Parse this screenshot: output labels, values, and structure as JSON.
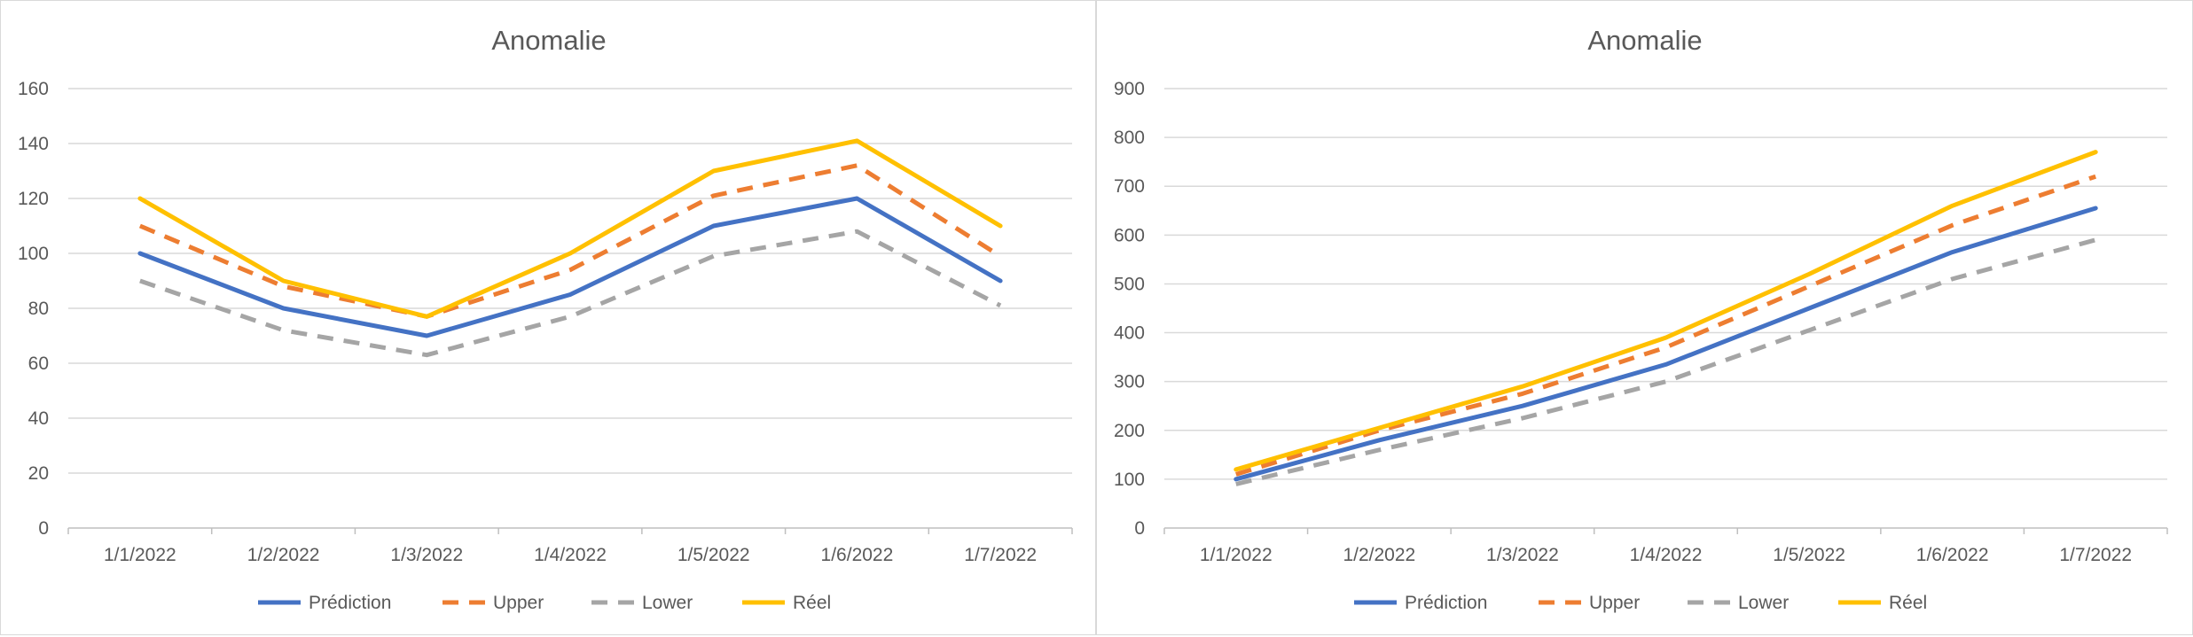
{
  "chart_data": [
    {
      "type": "line",
      "title": "Anomalie",
      "categories": [
        "1/1/2022",
        "1/2/2022",
        "1/3/2022",
        "1/4/2022",
        "1/5/2022",
        "1/6/2022",
        "1/7/2022"
      ],
      "ylim": [
        0,
        160
      ],
      "yticks": [
        0,
        20,
        40,
        60,
        80,
        100,
        120,
        140,
        160
      ],
      "grid": true,
      "legend": "bottom",
      "series": [
        {
          "name": "Prédiction",
          "color": "#4472C4",
          "dash": false,
          "values": [
            100,
            80,
            70,
            85,
            110,
            120,
            90
          ]
        },
        {
          "name": "Upper",
          "color": "#ED7D31",
          "dash": true,
          "values": [
            110,
            88,
            77,
            94,
            121,
            132,
            99
          ]
        },
        {
          "name": "Lower",
          "color": "#A5A5A5",
          "dash": true,
          "values": [
            90,
            72,
            63,
            77,
            99,
            108,
            81
          ]
        },
        {
          "name": "Réel",
          "color": "#FFC000",
          "dash": false,
          "values": [
            120,
            90,
            77,
            100,
            130,
            141,
            110
          ]
        }
      ]
    },
    {
      "type": "line",
      "title": "Anomalie",
      "categories": [
        "1/1/2022",
        "1/2/2022",
        "1/3/2022",
        "1/4/2022",
        "1/5/2022",
        "1/6/2022",
        "1/7/2022"
      ],
      "ylim": [
        0,
        900
      ],
      "yticks": [
        0,
        100,
        200,
        300,
        400,
        500,
        600,
        700,
        800,
        900
      ],
      "grid": true,
      "legend": "bottom",
      "series": [
        {
          "name": "Prédiction",
          "color": "#4472C4",
          "dash": false,
          "values": [
            100,
            180,
            250,
            335,
            450,
            565,
            655
          ]
        },
        {
          "name": "Upper",
          "color": "#ED7D31",
          "dash": true,
          "values": [
            110,
            200,
            275,
            370,
            495,
            620,
            720
          ]
        },
        {
          "name": "Lower",
          "color": "#A5A5A5",
          "dash": true,
          "values": [
            90,
            160,
            225,
            300,
            405,
            510,
            590
          ]
        },
        {
          "name": "Réel",
          "color": "#FFC000",
          "dash": false,
          "values": [
            120,
            205,
            290,
            390,
            520,
            660,
            770
          ]
        }
      ]
    }
  ]
}
